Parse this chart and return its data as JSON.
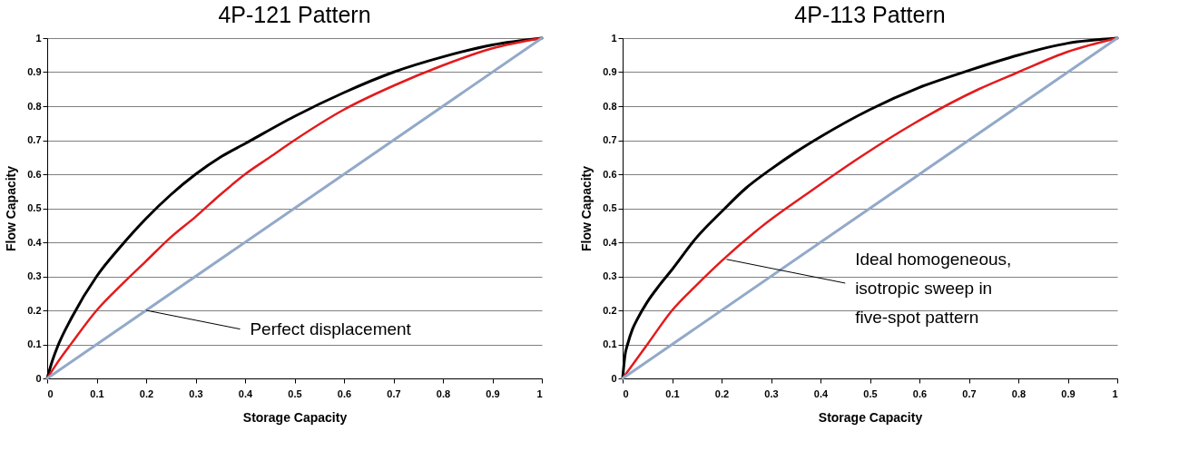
{
  "chart_data": [
    {
      "type": "line",
      "title": "4P-121 Pattern",
      "xlabel": "Storage Capacity",
      "ylabel": "Flow Capacity",
      "series": [
        {
          "color": "#000000",
          "x": [
            0,
            0.01,
            0.02,
            0.05,
            0.1,
            0.15,
            0.2,
            0.25,
            0.3,
            0.35,
            0.4,
            0.5,
            0.6,
            0.7,
            0.8,
            0.9,
            1
          ],
          "values": [
            0,
            0.05,
            0.09,
            0.18,
            0.3,
            0.39,
            0.47,
            0.54,
            0.6,
            0.65,
            0.69,
            0.77,
            0.84,
            0.9,
            0.945,
            0.98,
            1
          ]
        },
        {
          "color": "#e31a1c",
          "x": [
            0,
            0.02,
            0.05,
            0.1,
            0.15,
            0.2,
            0.25,
            0.3,
            0.35,
            0.4,
            0.45,
            0.5,
            0.6,
            0.7,
            0.8,
            0.9,
            1
          ],
          "values": [
            0,
            0.045,
            0.105,
            0.2,
            0.275,
            0.345,
            0.415,
            0.475,
            0.54,
            0.6,
            0.65,
            0.7,
            0.79,
            0.86,
            0.92,
            0.97,
            1
          ]
        },
        {
          "color": "#93a9c9",
          "x": [
            0,
            1
          ],
          "values": [
            0,
            1
          ]
        }
      ],
      "xlim": [
        0,
        1
      ],
      "ylim": [
        0,
        1
      ],
      "xticks": [
        0,
        0.1,
        0.2,
        0.3,
        0.4,
        0.5,
        0.6,
        0.7,
        0.8,
        0.9,
        1
      ],
      "yticks": [
        0,
        0.1,
        0.2,
        0.3,
        0.4,
        0.5,
        0.6,
        0.7,
        0.8,
        0.9,
        1
      ],
      "grid": "y",
      "marker": "none",
      "line_style": "solid",
      "annotations": [
        {
          "text": "Perfect displacement",
          "x": 0.2,
          "y": 0.2
        }
      ]
    },
    {
      "type": "line",
      "title": "4P-113 Pattern",
      "xlabel": "Storage Capacity",
      "ylabel": "Flow Capacity",
      "series": [
        {
          "color": "#000000",
          "x": [
            0,
            0.005,
            0.01,
            0.02,
            0.03,
            0.05,
            0.075,
            0.1,
            0.15,
            0.2,
            0.25,
            0.3,
            0.35,
            0.4,
            0.5,
            0.6,
            0.7,
            0.8,
            0.9,
            1
          ],
          "values": [
            0,
            0.07,
            0.1,
            0.145,
            0.175,
            0.225,
            0.275,
            0.32,
            0.415,
            0.49,
            0.56,
            0.615,
            0.665,
            0.71,
            0.79,
            0.855,
            0.905,
            0.95,
            0.985,
            1
          ]
        },
        {
          "color": "#e31a1c",
          "x": [
            0,
            0.05,
            0.1,
            0.15,
            0.2,
            0.28,
            0.38,
            0.48,
            0.59,
            0.72,
            0.8,
            0.9,
            1
          ],
          "values": [
            0,
            0.1,
            0.2,
            0.275,
            0.345,
            0.445,
            0.55,
            0.65,
            0.75,
            0.85,
            0.9,
            0.96,
            1
          ]
        },
        {
          "color": "#93a9c9",
          "x": [
            0,
            1
          ],
          "values": [
            0,
            1
          ]
        }
      ],
      "xlim": [
        0,
        1
      ],
      "ylim": [
        0,
        1
      ],
      "xticks": [
        0,
        0.1,
        0.2,
        0.3,
        0.4,
        0.5,
        0.6,
        0.7,
        0.8,
        0.9,
        1
      ],
      "yticks": [
        0,
        0.1,
        0.2,
        0.3,
        0.4,
        0.5,
        0.6,
        0.7,
        0.8,
        0.9,
        1
      ],
      "grid": "y",
      "marker": "none",
      "line_style": "solid",
      "annotations": [
        {
          "text": "Ideal homogeneous, isotropic sweep in five-spot pattern",
          "x": 0.21,
          "y": 0.35
        }
      ]
    }
  ]
}
